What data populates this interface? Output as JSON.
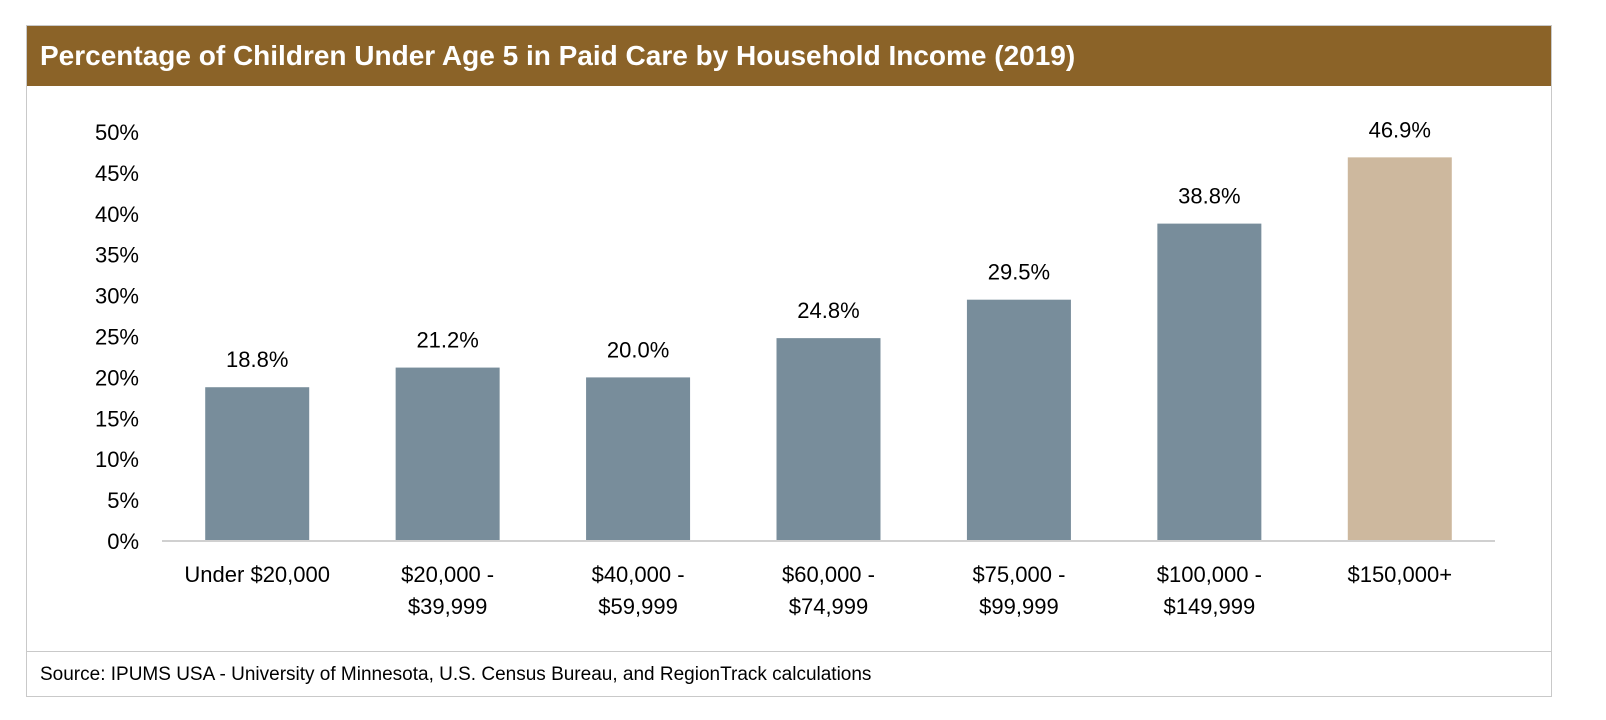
{
  "header": {
    "title": "Percentage of Children Under Age 5 in Paid Care by Household Income (2019)"
  },
  "footer": {
    "source": "Source: IPUMS USA - University of Minnesota, U.S. Census Bureau, and RegionTrack calculations"
  },
  "colors": {
    "title_bg": "#8b6328",
    "bar_default": "#788d9b",
    "bar_highlight": "#cdb89e",
    "axis": "#d0d0d0"
  },
  "chart_data": {
    "type": "bar",
    "title": "Percentage of Children Under Age 5 in Paid Care by Household Income (2019)",
    "xlabel": "",
    "ylabel": "",
    "ylim": [
      0,
      50
    ],
    "yticks": [
      "0%",
      "5%",
      "10%",
      "15%",
      "20%",
      "25%",
      "30%",
      "35%",
      "40%",
      "45%",
      "50%"
    ],
    "grid": false,
    "legend": "none",
    "categories": [
      [
        "Under $20,000"
      ],
      [
        "$20,000 -",
        "$39,999"
      ],
      [
        "$40,000 -",
        "$59,999"
      ],
      [
        "$60,000 -",
        "$74,999"
      ],
      [
        "$75,000 -",
        "$99,999"
      ],
      [
        "$100,000 -",
        "$149,999"
      ],
      [
        "$150,000+"
      ]
    ],
    "values": [
      18.8,
      21.2,
      20.0,
      24.8,
      29.5,
      38.8,
      46.9
    ],
    "data_labels": [
      "18.8%",
      "21.2%",
      "20.0%",
      "24.8%",
      "29.5%",
      "38.8%",
      "46.9%"
    ],
    "highlight_index": 6
  }
}
